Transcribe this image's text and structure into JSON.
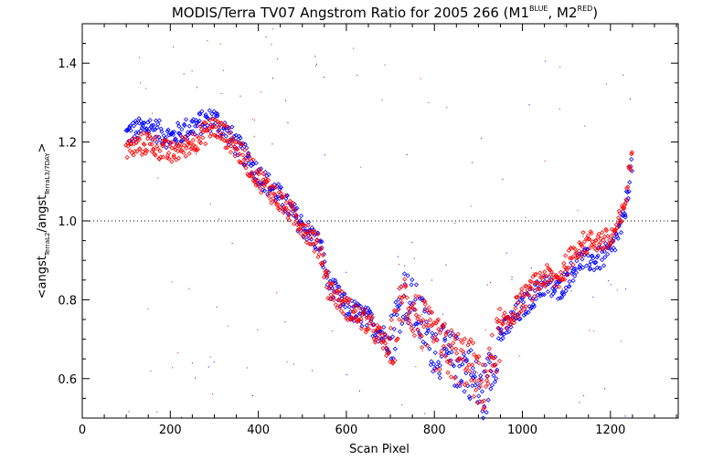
{
  "chart_data": {
    "type": "scatter",
    "title_main": "MODIS/Terra TV07 Angstrom Ratio for 2005 266 (M1",
    "title_sup1": "BLUE",
    "title_mid": ", M2",
    "title_sup2": "RED",
    "title_end": ")",
    "xlabel": "Scan Pixel",
    "ylabel_prefix": "<angst",
    "ylabel_sub1": "TerraL2",
    "ylabel_mid": "/angst",
    "ylabel_sub2": "TerraL3/7DAY",
    "ylabel_suffix": ">",
    "xlim": [
      0,
      1354
    ],
    "ylim": [
      0.5,
      1.5
    ],
    "xticks": [
      0,
      200,
      400,
      600,
      800,
      1000,
      1200
    ],
    "xtick_labels": [
      "0",
      "200",
      "400",
      "600",
      "800",
      "1000",
      "1200"
    ],
    "yticks": [
      0.6,
      0.8,
      1.0,
      1.2,
      1.4
    ],
    "ytick_labels": [
      "0.6",
      "0.8",
      "1.0",
      "1.2",
      "1.4"
    ],
    "reference_line": {
      "y": 1.0,
      "style": "dotted"
    },
    "colors": {
      "blue": "#0000ff",
      "red": "#ff0000",
      "axes": "#000000"
    },
    "series": [
      {
        "name": "BLUE",
        "color": "#0000ff",
        "marker": "diamond",
        "trend": [
          [
            100,
            1.22
          ],
          [
            150,
            1.24
          ],
          [
            200,
            1.21
          ],
          [
            250,
            1.24
          ],
          [
            300,
            1.26
          ],
          [
            340,
            1.21
          ],
          [
            400,
            1.12
          ],
          [
            450,
            1.06
          ],
          [
            500,
            0.99
          ],
          [
            540,
            0.94
          ],
          [
            560,
            0.84
          ],
          [
            600,
            0.78
          ],
          [
            650,
            0.75
          ],
          [
            700,
            0.69
          ],
          [
            730,
            0.82
          ],
          [
            760,
            0.77
          ],
          [
            800,
            0.68
          ],
          [
            840,
            0.65
          ],
          [
            880,
            0.62
          ],
          [
            910,
            0.55
          ],
          [
            950,
            0.71
          ],
          [
            1000,
            0.78
          ],
          [
            1050,
            0.84
          ],
          [
            1080,
            0.82
          ],
          [
            1130,
            0.9
          ],
          [
            1170,
            0.9
          ],
          [
            1200,
            0.92
          ],
          [
            1230,
            1.0
          ],
          [
            1250,
            1.16
          ]
        ]
      },
      {
        "name": "RED",
        "color": "#ff0000",
        "marker": "diamond",
        "trend": [
          [
            100,
            1.18
          ],
          [
            150,
            1.2
          ],
          [
            200,
            1.17
          ],
          [
            250,
            1.2
          ],
          [
            300,
            1.24
          ],
          [
            340,
            1.2
          ],
          [
            400,
            1.11
          ],
          [
            450,
            1.05
          ],
          [
            500,
            0.99
          ],
          [
            540,
            0.93
          ],
          [
            560,
            0.83
          ],
          [
            600,
            0.78
          ],
          [
            650,
            0.74
          ],
          [
            700,
            0.67
          ],
          [
            730,
            0.81
          ],
          [
            760,
            0.76
          ],
          [
            800,
            0.69
          ],
          [
            840,
            0.66
          ],
          [
            880,
            0.64
          ],
          [
            910,
            0.57
          ],
          [
            950,
            0.72
          ],
          [
            1000,
            0.8
          ],
          [
            1050,
            0.86
          ],
          [
            1080,
            0.85
          ],
          [
            1130,
            0.94
          ],
          [
            1170,
            0.95
          ],
          [
            1200,
            0.95
          ],
          [
            1230,
            1.02
          ],
          [
            1250,
            1.19
          ]
        ]
      }
    ]
  }
}
